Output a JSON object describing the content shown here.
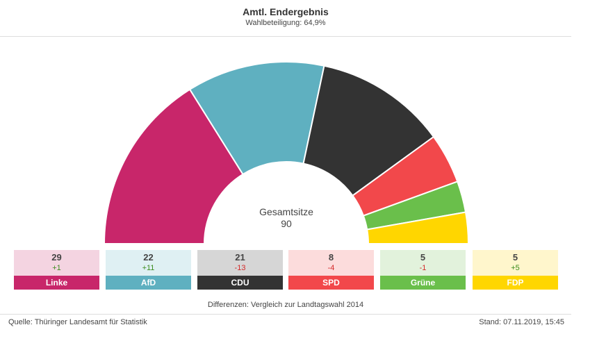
{
  "header": {
    "title": "Amtl. Endergebnis",
    "subtitle": "Wahlbeteiligung: 64,9%"
  },
  "center": {
    "label": "Gesamtsitze",
    "total": "90"
  },
  "chart_data": {
    "type": "pie",
    "subtype": "half-donut-parliament",
    "title": "Amtl. Endergebnis",
    "subtitle": "Wahlbeteiligung: 64,9%",
    "total_seats": 90,
    "parties": [
      {
        "name": "Linke",
        "seats": 29,
        "diff": "+1",
        "color": "#c8266a",
        "light": "#f4d4e1",
        "label_color": "#ffffff",
        "diff_color": "#3c8c1e"
      },
      {
        "name": "AfD",
        "seats": 22,
        "diff": "+11",
        "color": "#5fb0c0",
        "light": "#dff0f3",
        "label_color": "#ffffff",
        "diff_color": "#3c8c1e"
      },
      {
        "name": "CDU",
        "seats": 21,
        "diff": "-13",
        "color": "#333333",
        "light": "#d6d6d6",
        "label_color": "#ffffff",
        "diff_color": "#d42a2a"
      },
      {
        "name": "SPD",
        "seats": 8,
        "diff": "-4",
        "color": "#f2484b",
        "light": "#fcdcdc",
        "label_color": "#ffffff",
        "diff_color": "#d42a2a"
      },
      {
        "name": "Grüne",
        "seats": 5,
        "diff": "-1",
        "color": "#6abf4b",
        "light": "#e2f2dc",
        "label_color": "#ffffff",
        "diff_color": "#d42a2a"
      },
      {
        "name": "FDP",
        "seats": 5,
        "diff": "+5",
        "color": "#ffd600",
        "light": "#fff6cc",
        "label_color": "#ffffff",
        "diff_color": "#3c8c1e"
      }
    ]
  },
  "footer": {
    "note": "Differenzen: Vergleich zur Landtagswahl 2014",
    "source": "Quelle: Thüringer Landesamt für Statistik",
    "stand": "Stand: 07.11.2019, 15:45"
  }
}
